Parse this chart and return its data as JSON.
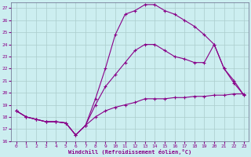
{
  "xlabel": "Windchill (Refroidissement éolien,°C)",
  "background_color": "#cceef0",
  "grid_color": "#aacccc",
  "line_color": "#880088",
  "xlim": [
    -0.5,
    23.5
  ],
  "ylim": [
    16,
    27.5
  ],
  "yticks": [
    16,
    17,
    18,
    19,
    20,
    21,
    22,
    23,
    24,
    25,
    26,
    27
  ],
  "xticks": [
    0,
    1,
    2,
    3,
    4,
    5,
    6,
    7,
    8,
    9,
    10,
    11,
    12,
    13,
    14,
    15,
    16,
    17,
    18,
    19,
    20,
    21,
    22,
    23
  ],
  "series1_x": [
    0,
    1,
    2,
    3,
    4,
    5,
    6,
    7,
    8,
    9,
    10,
    11,
    12,
    13,
    14,
    15,
    16,
    17,
    18,
    19,
    20,
    21,
    22,
    23
  ],
  "series1_y": [
    18.5,
    18.0,
    17.8,
    17.6,
    17.6,
    17.5,
    16.5,
    17.3,
    18.0,
    18.5,
    18.8,
    19.0,
    19.2,
    19.5,
    19.5,
    19.5,
    19.6,
    19.6,
    19.7,
    19.7,
    19.8,
    19.8,
    19.9,
    19.9
  ],
  "series2_x": [
    0,
    1,
    2,
    3,
    4,
    5,
    6,
    7,
    8,
    9,
    10,
    11,
    12,
    13,
    14,
    15,
    16,
    17,
    18,
    19,
    20,
    21,
    22,
    23
  ],
  "series2_y": [
    18.5,
    18.0,
    17.8,
    17.6,
    17.6,
    17.5,
    16.5,
    17.3,
    19.0,
    20.5,
    21.5,
    22.5,
    23.5,
    24.0,
    24.0,
    23.5,
    23.0,
    22.8,
    22.5,
    22.5,
    24.0,
    22.0,
    21.0,
    19.8
  ],
  "series3_x": [
    0,
    1,
    2,
    3,
    4,
    5,
    6,
    7,
    8,
    9,
    10,
    11,
    12,
    13,
    14,
    15,
    16,
    17,
    18,
    19,
    20,
    21,
    22,
    23
  ],
  "series3_y": [
    18.5,
    18.0,
    17.8,
    17.6,
    17.6,
    17.5,
    16.5,
    17.3,
    19.5,
    22.0,
    24.8,
    26.5,
    26.8,
    27.3,
    27.3,
    26.8,
    26.5,
    26.0,
    25.5,
    24.8,
    24.0,
    22.0,
    20.8,
    19.8
  ]
}
